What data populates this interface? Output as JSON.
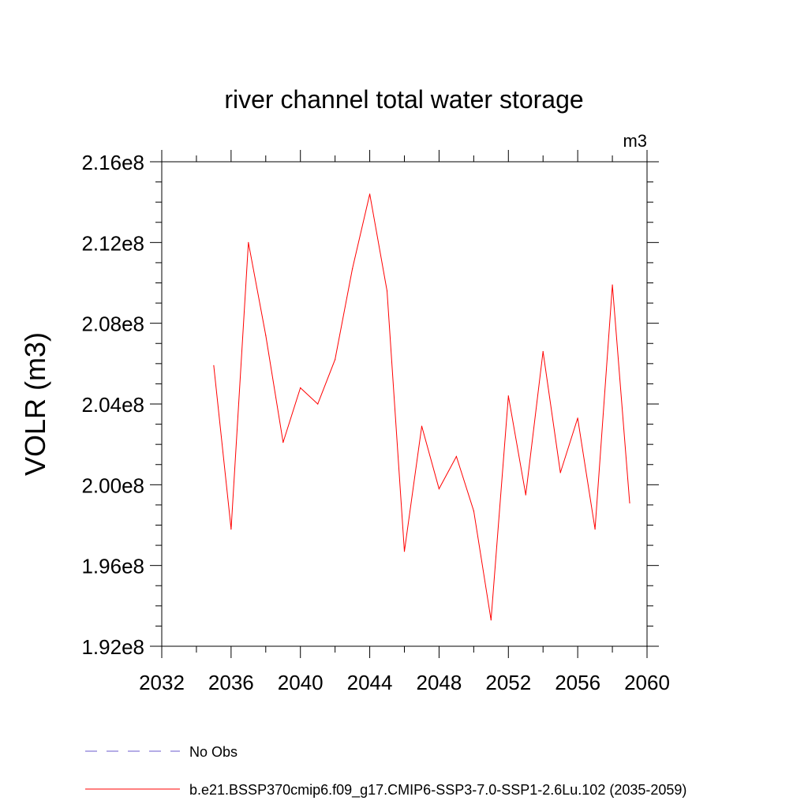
{
  "chart_data": {
    "type": "line",
    "title": "river channel total water storage",
    "units_label": "m3",
    "ylabel": "VOLR  (m3)",
    "xlim": [
      2032,
      2060
    ],
    "ylim": [
      192000000.0,
      216000000.0
    ],
    "x_ticks": [
      2032,
      2036,
      2040,
      2044,
      2048,
      2052,
      2056,
      2060
    ],
    "x_tick_labels": [
      "2032",
      "2036",
      "2040",
      "2044",
      "2048",
      "2052",
      "2056",
      "2060"
    ],
    "y_ticks": [
      192000000.0,
      196000000.0,
      200000000.0,
      204000000.0,
      208000000.0,
      212000000.0,
      216000000.0
    ],
    "y_tick_labels": [
      "1.92e8",
      "1.96e8",
      "2.00e8",
      "2.04e8",
      "2.08e8",
      "2.12e8",
      "2.16e8"
    ],
    "grid": false,
    "legend_position": "bottom",
    "series": [
      {
        "name": "b.e21.BSSP370cmip6.f09_g17.CMIP6-SSP3-7.0-SSP1-2.6Lu.102 (2035-2059)",
        "color": "#ff0000",
        "style": "solid",
        "x": [
          2035,
          2036,
          2037,
          2038,
          2039,
          2040,
          2041,
          2042,
          2043,
          2044,
          2045,
          2046,
          2047,
          2048,
          2049,
          2050,
          2051,
          2052,
          2053,
          2054,
          2055,
          2056,
          2057,
          2058,
          2059
        ],
        "y": [
          205900000.0,
          197800000.0,
          212000000.0,
          207400000.0,
          202100000.0,
          204800000.0,
          204000000.0,
          206200000.0,
          210700000.0,
          214400000.0,
          209600000.0,
          196700000.0,
          202900000.0,
          199800000.0,
          201400000.0,
          198700000.0,
          193300000.0,
          204400000.0,
          199500000.0,
          206600000.0,
          200600000.0,
          203300000.0,
          197800000.0,
          209900000.0,
          199100000.0
        ]
      }
    ],
    "legend": [
      {
        "label": "No Obs",
        "color": "#6a5acd",
        "style": "dashed"
      },
      {
        "label": "b.e21.BSSP370cmip6.f09_g17.CMIP6-SSP3-7.0-SSP1-2.6Lu.102 (2035-2059)",
        "color": "#ff0000",
        "style": "solid"
      }
    ]
  }
}
